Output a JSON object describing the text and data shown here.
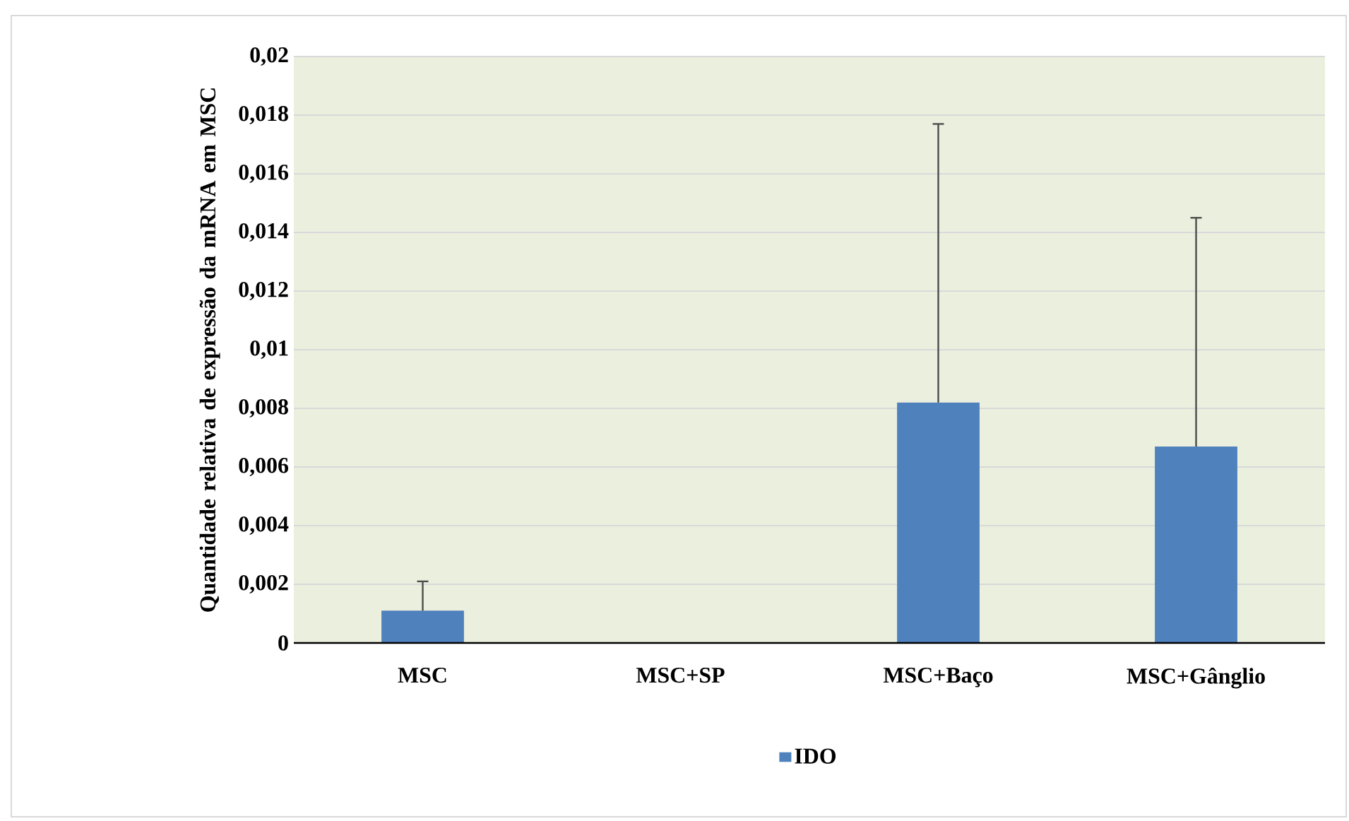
{
  "chart_data": {
    "type": "bar",
    "ylabel": "Quantidade relativa de expressão da mRNA em MSC",
    "categories": [
      "MSC",
      "MSC+SP",
      "MSC+Baço",
      "MSC+Gânglio"
    ],
    "series": [
      {
        "name": "IDO",
        "color": "#4f81bd",
        "values": [
          0.0011,
          0,
          0.0082,
          0.0067
        ],
        "errors": [
          [
            0.0011,
            0.0021
          ],
          null,
          [
            0.0082,
            0.0177
          ],
          [
            0.0067,
            0.0145
          ]
        ]
      }
    ],
    "ylim": [
      0,
      0.02
    ],
    "yticks": [
      {
        "value": 0,
        "label": "0"
      },
      {
        "value": 0.002,
        "label": "0,002"
      },
      {
        "value": 0.004,
        "label": "0,004"
      },
      {
        "value": 0.006,
        "label": "0,006"
      },
      {
        "value": 0.008,
        "label": "0,008"
      },
      {
        "value": 0.01,
        "label": "0,01"
      },
      {
        "value": 0.012,
        "label": "0,012"
      },
      {
        "value": 0.014,
        "label": "0,014"
      },
      {
        "value": 0.016,
        "label": "0,016"
      },
      {
        "value": 0.018,
        "label": "0,018"
      },
      {
        "value": 0.02,
        "label": "0,02"
      }
    ],
    "grid": "y",
    "legend": "bottom"
  }
}
